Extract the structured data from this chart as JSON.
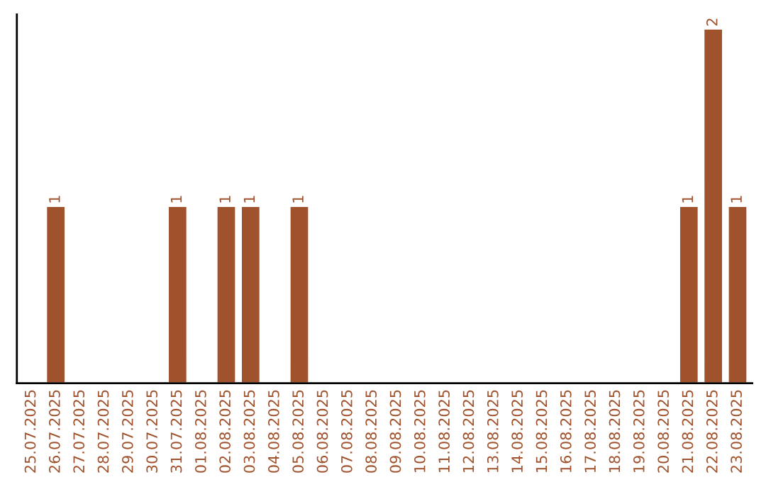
{
  "chart_data": {
    "type": "bar",
    "categories": [
      "25.07.2025",
      "26.07.2025",
      "27.07.2025",
      "28.07.2025",
      "29.07.2025",
      "30.07.2025",
      "31.07.2025",
      "01.08.2025",
      "02.08.2025",
      "03.08.2025",
      "04.08.2025",
      "05.08.2025",
      "06.08.2025",
      "07.08.2025",
      "08.08.2025",
      "09.08.2025",
      "10.08.2025",
      "11.08.2025",
      "12.08.2025",
      "13.08.2025",
      "14.08.2025",
      "15.08.2025",
      "16.08.2025",
      "17.08.2025",
      "18.08.2025",
      "19.08.2025",
      "20.08.2025",
      "21.08.2025",
      "22.08.2025",
      "23.08.2025"
    ],
    "values": [
      0,
      1,
      0,
      0,
      0,
      0,
      1,
      0,
      1,
      1,
      0,
      1,
      0,
      0,
      0,
      0,
      0,
      0,
      0,
      0,
      0,
      0,
      0,
      0,
      0,
      0,
      0,
      1,
      2,
      1
    ],
    "value_labels": [
      null,
      "1",
      null,
      null,
      null,
      null,
      "1",
      null,
      "1",
      "1",
      null,
      "1",
      null,
      null,
      null,
      null,
      null,
      null,
      null,
      null,
      null,
      null,
      null,
      null,
      null,
      null,
      null,
      "1",
      "2",
      "1"
    ],
    "color": "#a0522d",
    "tick_labels": "x",
    "grid": false,
    "legend": false
  }
}
